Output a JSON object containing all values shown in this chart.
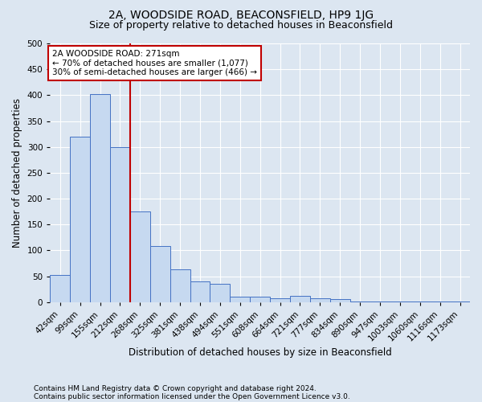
{
  "title": "2A, WOODSIDE ROAD, BEACONSFIELD, HP9 1JG",
  "subtitle": "Size of property relative to detached houses in Beaconsfield",
  "xlabel": "Distribution of detached houses by size in Beaconsfield",
  "ylabel": "Number of detached properties",
  "footnote1": "Contains HM Land Registry data © Crown copyright and database right 2024.",
  "footnote2": "Contains public sector information licensed under the Open Government Licence v3.0.",
  "categories": [
    "42sqm",
    "99sqm",
    "155sqm",
    "212sqm",
    "268sqm",
    "325sqm",
    "381sqm",
    "438sqm",
    "494sqm",
    "551sqm",
    "608sqm",
    "664sqm",
    "721sqm",
    "777sqm",
    "834sqm",
    "890sqm",
    "947sqm",
    "1003sqm",
    "1060sqm",
    "1116sqm",
    "1173sqm"
  ],
  "values": [
    53,
    320,
    402,
    300,
    175,
    108,
    63,
    40,
    35,
    10,
    10,
    7,
    13,
    8,
    6,
    2,
    2,
    2,
    2,
    2,
    2
  ],
  "bar_color": "#c6d9f0",
  "bar_edge_color": "#4472c4",
  "vline_x_index": 4,
  "vline_color": "#c00000",
  "annotation_text": "2A WOODSIDE ROAD: 271sqm\n← 70% of detached houses are smaller (1,077)\n30% of semi-detached houses are larger (466) →",
  "annotation_box_color": "#ffffff",
  "annotation_box_edge": "#c00000",
  "bg_color": "#dce6f1",
  "plot_bg_color": "#dce6f1",
  "ylim": [
    0,
    500
  ],
  "yticks": [
    0,
    50,
    100,
    150,
    200,
    250,
    300,
    350,
    400,
    450,
    500
  ],
  "title_fontsize": 10,
  "subtitle_fontsize": 9,
  "xlabel_fontsize": 8.5,
  "ylabel_fontsize": 8.5,
  "tick_fontsize": 7.5,
  "annot_fontsize": 7.5,
  "footnote_fontsize": 6.5
}
